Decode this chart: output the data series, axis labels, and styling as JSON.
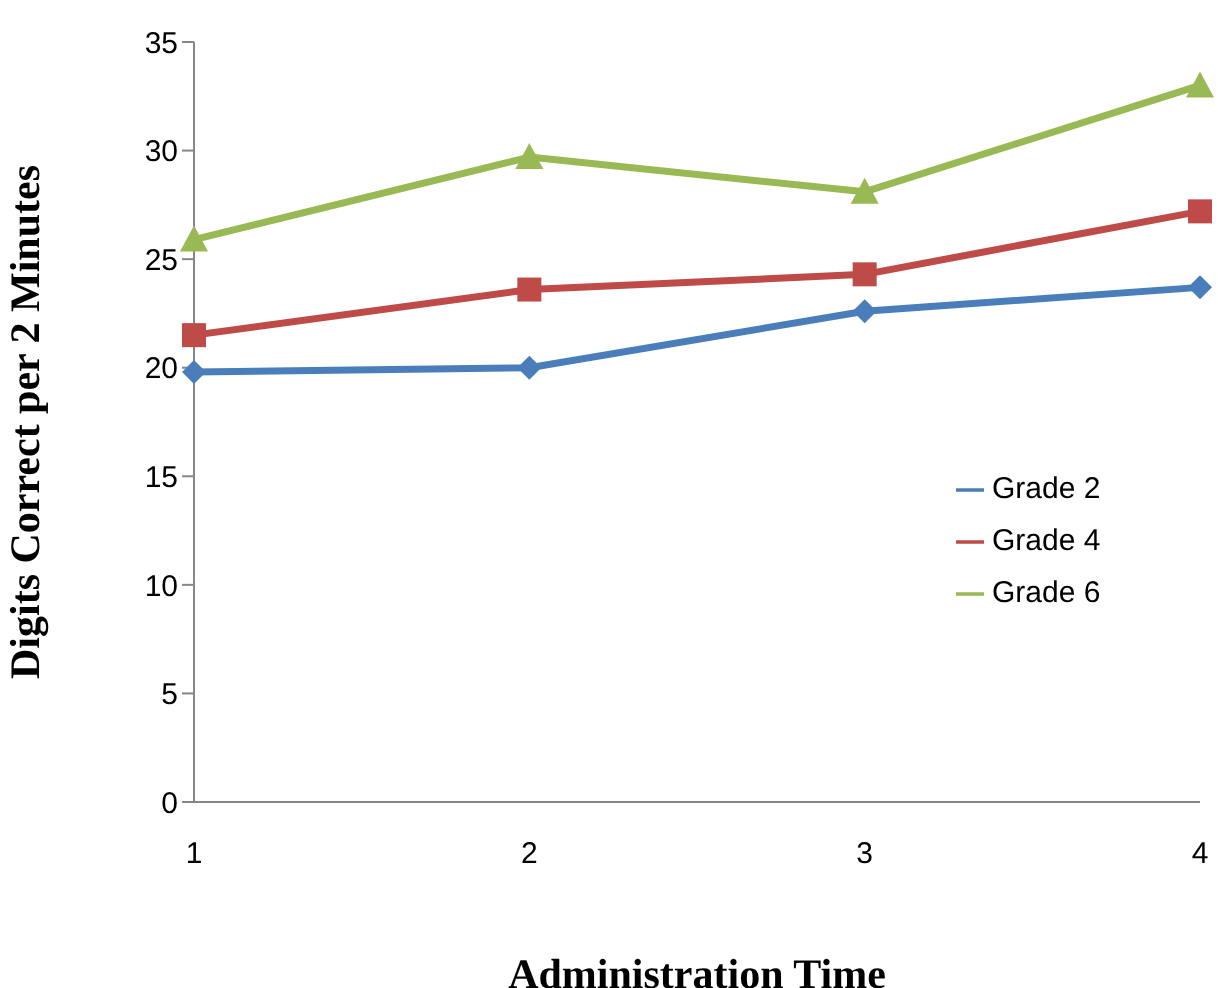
{
  "chart_data": {
    "type": "line",
    "xlabel": "Administration Time",
    "ylabel": "Digits Correct per 2 Minutes",
    "categories": [
      "1",
      "2",
      "3",
      "4"
    ],
    "series": [
      {
        "name": "Grade 2",
        "color": "#4a7ebb",
        "marker": "diamond",
        "values": [
          19.8,
          20.0,
          22.6,
          23.7
        ]
      },
      {
        "name": "Grade 4",
        "color": "#be4b48",
        "marker": "square",
        "values": [
          21.5,
          23.6,
          24.3,
          27.2
        ]
      },
      {
        "name": "Grade 6",
        "color": "#98b954",
        "marker": "triangle",
        "values": [
          25.9,
          29.7,
          28.1,
          33.0
        ]
      }
    ],
    "ylim": [
      0,
      35
    ],
    "yticks": [
      0,
      5,
      10,
      15,
      20,
      25,
      30,
      35
    ],
    "grid": false,
    "legend": "right"
  }
}
